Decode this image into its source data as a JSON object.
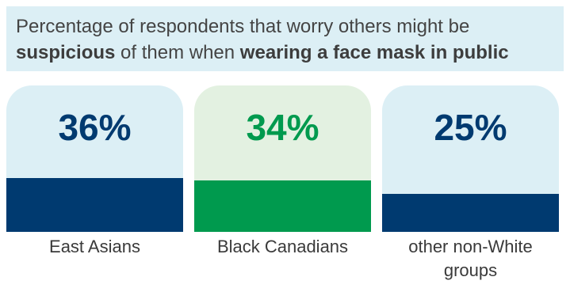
{
  "header": {
    "line1": "Percentage of respondents that worry others might be",
    "line2_bold1": "suspicious",
    "line2_mid": " of them when ",
    "line2_bold2": "wearing a face mask in public"
  },
  "colors": {
    "header_bg": "#dceff5",
    "card_bg_blue": "#dceff5",
    "card_bg_green": "#e3f1e1",
    "navy": "#003a70",
    "green": "#009a4e"
  },
  "chart_data": {
    "type": "bar",
    "title": "Percentage of respondents that worry others might be suspicious of them when wearing a face mask in public",
    "categories": [
      "East Asians",
      "Black Canadians",
      "other non-White groups"
    ],
    "values": [
      36,
      34,
      25
    ],
    "value_labels": [
      "36%",
      "34%",
      "25%"
    ],
    "ylim": [
      0,
      100
    ],
    "series": [
      {
        "values": [
          36,
          34,
          25
        ]
      }
    ]
  },
  "cards": [
    {
      "value_text": "36%",
      "label_line1": "East Asians",
      "label_line2": "",
      "bg": "#dceff5",
      "fill": "#003a70",
      "text_color": "#003a70"
    },
    {
      "value_text": "34%",
      "label_line1": "Black Canadians",
      "label_line2": "",
      "bg": "#e3f1e1",
      "fill": "#009a4e",
      "text_color": "#009a4e"
    },
    {
      "value_text": "25%",
      "label_line1": "other non-White",
      "label_line2": "groups",
      "bg": "#dceff5",
      "fill": "#003a70",
      "text_color": "#003a70"
    }
  ]
}
